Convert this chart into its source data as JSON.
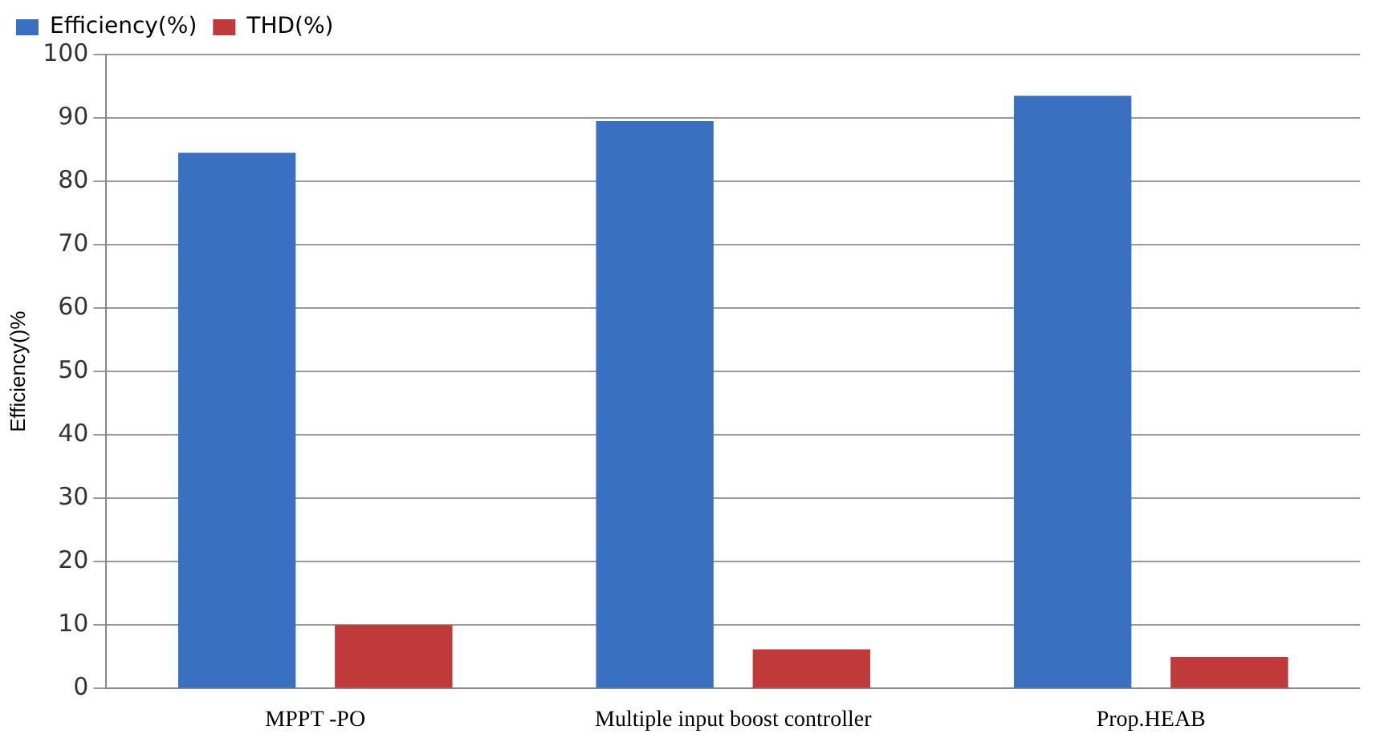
{
  "chart_data": {
    "type": "bar",
    "ylabel": "Efficiency()%",
    "categories": [
      "MPPT -PO",
      "Multiple input boost controller",
      "Prop.HEAB"
    ],
    "series": [
      {
        "name": "Efficiency(%)",
        "color": "#3a70c0",
        "values": [
          84.5,
          89.5,
          93.5
        ]
      },
      {
        "name": "THD(%)",
        "color": "#c0393b",
        "values": [
          10,
          6.2,
          5
        ]
      }
    ],
    "ylim": [
      0,
      100
    ],
    "yticks": [
      0,
      10,
      20,
      30,
      40,
      50,
      60,
      70,
      80,
      90,
      100
    ],
    "grid": "y",
    "legend": "top left"
  }
}
